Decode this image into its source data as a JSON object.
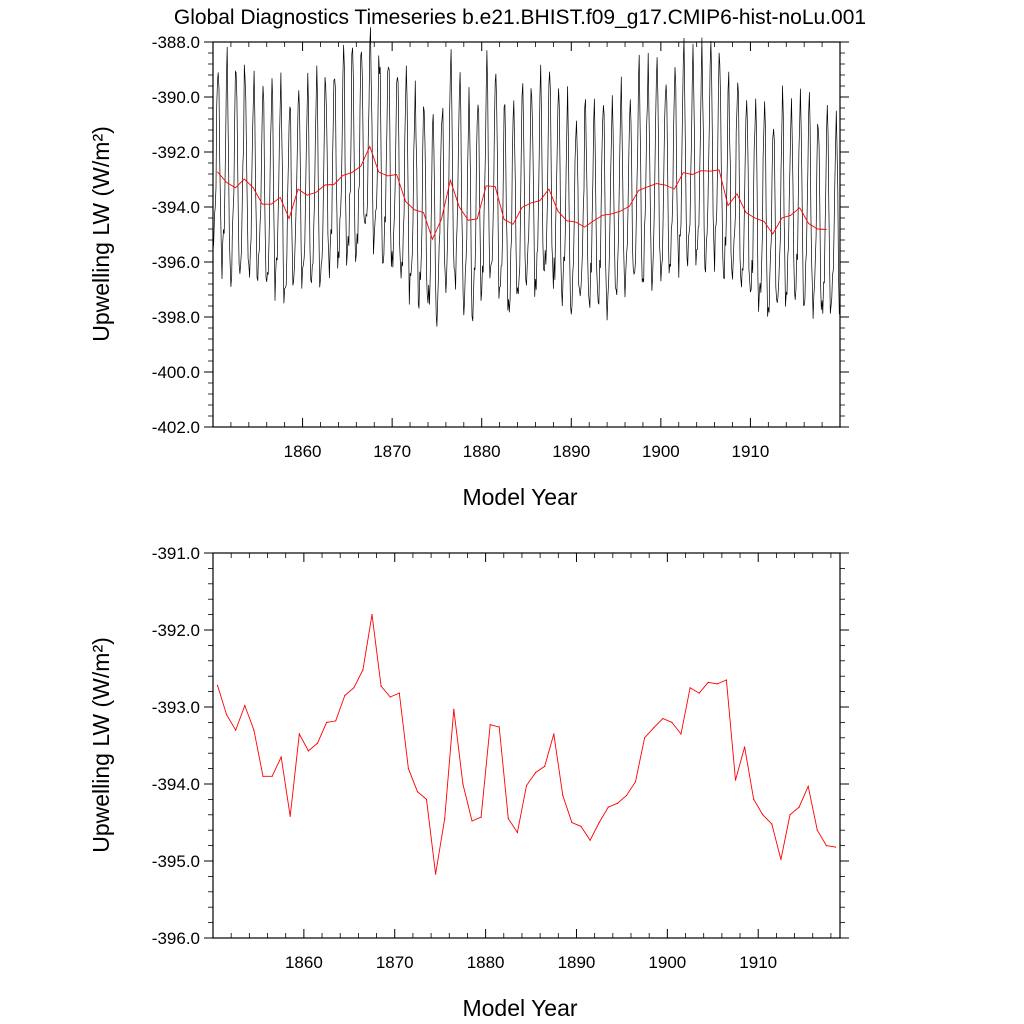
{
  "title": "Global Diagnostics Timeseries b.e21.BHIST.f09_g17.CMIP6-hist-noLu.001",
  "colors": {
    "monthly": "#000000",
    "annual": "#ff0000",
    "axis": "#000000",
    "background": "#ffffff"
  },
  "annual_x": [
    1850.5,
    1851.5,
    1852.5,
    1853.5,
    1854.5,
    1855.5,
    1856.5,
    1857.5,
    1858.5,
    1859.5,
    1860.5,
    1861.5,
    1862.5,
    1863.5,
    1864.5,
    1865.5,
    1866.5,
    1867.5,
    1868.5,
    1869.5,
    1870.5,
    1871.5,
    1872.5,
    1873.5,
    1874.5,
    1875.5,
    1876.5,
    1877.5,
    1878.5,
    1879.5,
    1880.5,
    1881.5,
    1882.5,
    1883.5,
    1884.5,
    1885.5,
    1886.5,
    1887.5,
    1888.5,
    1889.5,
    1890.5,
    1891.5,
    1892.5,
    1893.5,
    1894.5,
    1895.5,
    1896.5,
    1897.5,
    1898.5,
    1899.5,
    1900.5,
    1901.5,
    1902.5,
    1903.5,
    1904.5,
    1905.5,
    1906.5,
    1907.5,
    1908.5,
    1909.5,
    1910.5,
    1911.5,
    1912.5,
    1913.5,
    1914.5,
    1915.5,
    1916.5,
    1917.5,
    1918.5
  ],
  "annual_values": [
    -392.72,
    -393.1,
    -393.3,
    -392.98,
    -393.3,
    -393.9,
    -393.9,
    -393.65,
    -394.42,
    -393.35,
    -393.57,
    -393.47,
    -393.2,
    -393.18,
    -392.85,
    -392.75,
    -392.52,
    -391.8,
    -392.73,
    -392.87,
    -392.82,
    -393.8,
    -394.1,
    -394.2,
    -395.17,
    -394.45,
    -393.03,
    -394.0,
    -394.48,
    -394.43,
    -393.23,
    -393.26,
    -394.45,
    -394.63,
    -394.02,
    -393.85,
    -393.77,
    -393.35,
    -394.15,
    -394.5,
    -394.55,
    -394.73,
    -394.5,
    -394.3,
    -394.25,
    -394.15,
    -393.97,
    -393.4,
    -393.27,
    -393.15,
    -393.2,
    -393.35,
    -392.75,
    -392.82,
    -392.68,
    -392.7,
    -392.65,
    -393.95,
    -393.52,
    -394.2,
    -394.4,
    -394.52,
    -394.98,
    -394.4,
    -394.3,
    -394.03,
    -394.6,
    -394.8,
    -394.82
  ],
  "charts": [
    {
      "type": "line",
      "title": "Global Diagnostics Timeseries b.e21.BHIST.f09_g17.CMIP6-hist-noLu.001",
      "xlabel": "Model Year",
      "ylabel": "Upwelling LW (W/m²)",
      "xlim": [
        1850,
        1920
      ],
      "ylim": [
        -402.0,
        -388.0
      ],
      "x_ticks": [
        "1860",
        "1870",
        "1880",
        "1890",
        "1900",
        "1910"
      ],
      "y_ticks": [
        "-388.0",
        "-390.0",
        "-392.0",
        "-394.0",
        "-396.0",
        "-398.0",
        "-400.0",
        "-402.0"
      ],
      "monthly_cycle": {
        "amplitude": 4.2,
        "x_start": 1850.0,
        "x_end": 1919.9,
        "samples_per_year": 12
      }
    },
    {
      "type": "line",
      "title": "",
      "xlabel": "Model Year",
      "ylabel": "Upwelling LW (W/m²)",
      "xlim": [
        1850,
        1919
      ],
      "ylim": [
        -396.0,
        -391.0
      ],
      "x_ticks": [
        "1860",
        "1870",
        "1880",
        "1890",
        "1900",
        "1910"
      ],
      "y_ticks": [
        "-391.0",
        "-392.0",
        "-393.0",
        "-394.0",
        "-395.0",
        "-396.0"
      ]
    }
  ]
}
